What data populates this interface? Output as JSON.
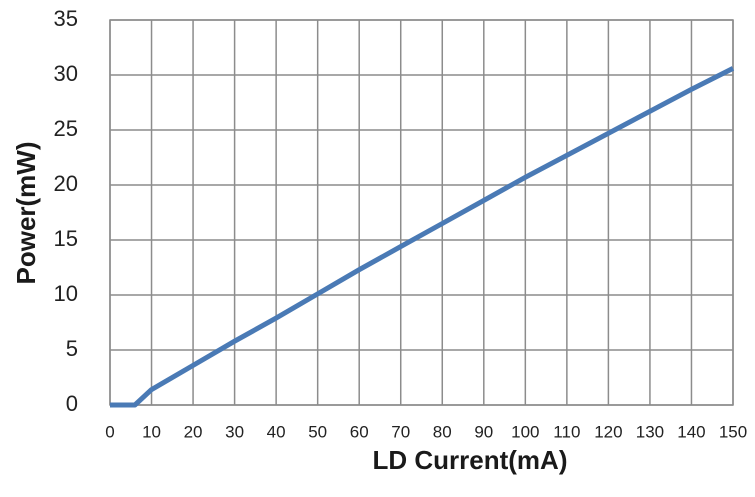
{
  "chart_data": {
    "type": "line",
    "title": "",
    "xlabel": "LD Current(mA)",
    "ylabel": "Power(mW)",
    "xlim": [
      0,
      150
    ],
    "ylim": [
      0,
      35
    ],
    "x_ticks": [
      0,
      10,
      20,
      30,
      40,
      50,
      60,
      70,
      80,
      90,
      100,
      110,
      120,
      130,
      140,
      150
    ],
    "y_ticks": [
      0,
      5,
      10,
      15,
      20,
      25,
      30,
      35
    ],
    "grid": true,
    "legend": "none",
    "series": [
      {
        "color": "#4a7ab5",
        "x": [
          0,
          6,
          10,
          20,
          30,
          40,
          50,
          60,
          70,
          80,
          90,
          100,
          110,
          120,
          130,
          140,
          150
        ],
        "y": [
          0,
          0,
          1.4,
          3.6,
          5.8,
          7.9,
          10.1,
          12.3,
          14.4,
          16.5,
          18.6,
          20.7,
          22.7,
          24.7,
          26.7,
          28.7,
          30.6
        ]
      }
    ]
  }
}
